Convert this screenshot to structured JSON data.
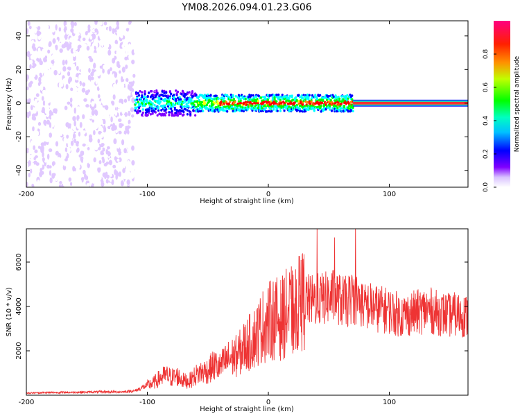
{
  "figure_title": "YM08.2026.094.01.23.G06",
  "chart_data": [
    {
      "type": "heatmap",
      "title": "YM08.2026.094.01.23.G06",
      "xlabel": "Height of straight line (km)",
      "ylabel": "Frequency (Hz)",
      "xlim": [
        -200,
        165
      ],
      "ylim": [
        -50,
        49
      ],
      "x_ticks": [
        -200,
        -100,
        0,
        100
      ],
      "y_ticks": [
        -40,
        -20,
        0,
        20,
        40
      ],
      "colorbar": {
        "label": "Normalized spectral amplitude",
        "range": [
          0,
          1
        ],
        "ticks": [
          "0.0",
          "0.2",
          "0.4",
          "0.6",
          "0.8"
        ],
        "colormap": [
          "#ffffff",
          "#e0c8ff",
          "#7f00ff",
          "#0000ff",
          "#00ffff",
          "#00ff00",
          "#ffff00",
          "#ff8000",
          "#ff0000",
          "#ff0080"
        ]
      },
      "description_regions": [
        {
          "x_range": [
            -200,
            -110
          ],
          "freq_range": [
            -50,
            49
          ],
          "amplitude": "low, scattered noise"
        },
        {
          "x_range": [
            -110,
            70
          ],
          "freq_center": 0,
          "freq_halfwidth": 5,
          "amplitude": "0.2-0.8 band"
        },
        {
          "x_range": [
            70,
            165
          ],
          "freq_center": 0,
          "freq_halfwidth": 2,
          "amplitude": "0.8-1.0 strong line"
        }
      ]
    },
    {
      "type": "line",
      "xlabel": "Height of straight line (km)",
      "ylabel": "SNR (10 * v/v)",
      "xlim": [
        -200,
        165
      ],
      "ylim": [
        0,
        7500
      ],
      "x_ticks": [
        -200,
        -100,
        0,
        100
      ],
      "y_ticks": [
        2000,
        4000,
        6000
      ],
      "series": [
        {
          "name": "SNR",
          "color": "#ee3333",
          "x": [
            -200,
            -180,
            -160,
            -140,
            -120,
            -110,
            -100,
            -95,
            -90,
            -85,
            -80,
            -75,
            -70,
            -65,
            -60,
            -55,
            -50,
            -45,
            -40,
            -35,
            -30,
            -25,
            -20,
            -15,
            -10,
            -5,
            0,
            5,
            10,
            15,
            20,
            25,
            30,
            35,
            40,
            45,
            50,
            55,
            60,
            65,
            70,
            75,
            80,
            85,
            90,
            95,
            100,
            105,
            110,
            115,
            120,
            125,
            130,
            135,
            140,
            145,
            150,
            155,
            160,
            165
          ],
          "values": [
            100,
            120,
            130,
            150,
            150,
            200,
            450,
            550,
            750,
            900,
            800,
            850,
            650,
            650,
            900,
            1050,
            1100,
            1350,
            1250,
            1550,
            1700,
            1800,
            2200,
            2400,
            2700,
            3100,
            3300,
            3500,
            3400,
            3700,
            3800,
            4050,
            4350,
            4250,
            4300,
            4350,
            4400,
            4500,
            4250,
            4200,
            4450,
            4250,
            4050,
            4000,
            3900,
            3850,
            3800,
            3700,
            3600,
            3650,
            3700,
            3750,
            3850,
            3800,
            3700,
            3650,
            3600,
            3650,
            3600,
            3550
          ]
        }
      ]
    }
  ]
}
